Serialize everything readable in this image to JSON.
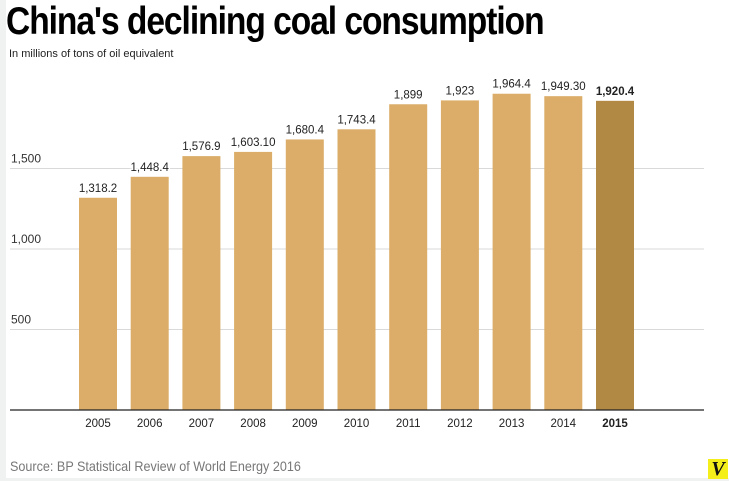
{
  "chart_data": {
    "type": "bar",
    "title": "China's declining coal consumption",
    "subtitle": "In millions of tons of oil equivalent",
    "xlabel": "",
    "ylabel": "In millions of tons of oil equivalent",
    "categories": [
      "2005",
      "2006",
      "2007",
      "2008",
      "2009",
      "2010",
      "2011",
      "2012",
      "2013",
      "2014",
      "2015"
    ],
    "values": [
      1318.2,
      1448.4,
      1576.9,
      1603.1,
      1680.4,
      1743.4,
      1899,
      1923,
      1964.4,
      1949.3,
      1920.4
    ],
    "value_labels": [
      "1,318.2",
      "1,448.4",
      "1,576.9",
      "1,603.10",
      "1,680.4",
      "1,743.4",
      "1,899",
      "1,923",
      "1,964.4",
      "1,949.30",
      "1,920.4"
    ],
    "highlight_index": 10,
    "yticks": [
      500,
      1000,
      1500
    ],
    "ytick_labels": [
      "500",
      "1,000",
      "1,500"
    ],
    "ylim": [
      0,
      2000
    ],
    "grid": true,
    "colors": {
      "bar": "#dbad68",
      "highlight": "#b28944",
      "grid": "#d9d9d9",
      "axis": "#222222"
    }
  },
  "source": "Source: BP Statistical Review of World Energy 2016",
  "logo": "V"
}
